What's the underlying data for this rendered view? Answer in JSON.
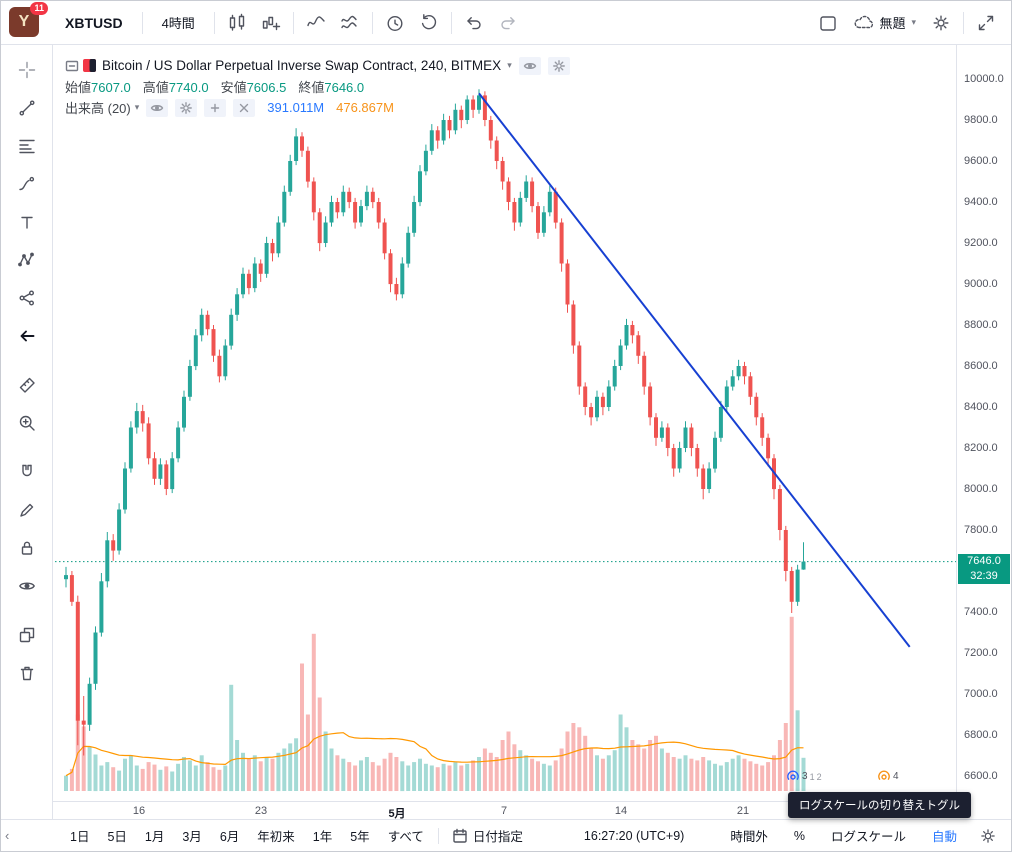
{
  "top_toolbar": {
    "logo_badge": "11",
    "symbol": "XBTUSD",
    "interval": "4時間",
    "save_name": "無題",
    "icons_left": [
      "chart-style",
      "compare",
      "indicators",
      "indicator-templates",
      "alert",
      "replay",
      "undo",
      "redo"
    ],
    "icons_right": [
      "layout",
      "cloud",
      "settings",
      "fullscreen"
    ]
  },
  "left_toolbar": {
    "tools": [
      "crosshair",
      "trend-line",
      "fib-retracement",
      "brush",
      "text",
      "xabcd-pattern",
      "prediction",
      "back-arrow",
      "ruler",
      "zoom-in",
      "magnet",
      "drawing-lock",
      "lock-all",
      "hide-all",
      "object-tree",
      "remove-drawings"
    ]
  },
  "legend": {
    "title": "Bitcoin / US Dollar Perpetual Inverse Swap Contract, 240, BITMEX",
    "ohlc": [
      {
        "label": "始値",
        "value": "7607.0"
      },
      {
        "label": "高値",
        "value": "7740.0"
      },
      {
        "label": "安値",
        "value": "7606.5"
      },
      {
        "label": "終値",
        "value": "7646.0"
      }
    ],
    "volume_label": "出来高 (20)",
    "volume_value": "391.011M",
    "volume_ma_value": "476.867M"
  },
  "price_scale": {
    "last_price_label": "7646.0",
    "countdown": "32:39"
  },
  "tooltip": {
    "text": "ログスケールの切り替えトグル"
  },
  "bottom_toolbar": {
    "ranges": [
      "1日",
      "5日",
      "1月",
      "3月",
      "6月",
      "年初来",
      "1年",
      "5年",
      "すべて"
    ],
    "goto_date": "日付指定",
    "clock": "16:27:20 (UTC+9)",
    "extended_hours": "時間外",
    "percent": "%",
    "log_scale": "ログスケール",
    "auto": "自動"
  },
  "markers": [
    {
      "index": 124,
      "color": "#2962ff",
      "labels": [
        "3",
        "1",
        "2"
      ]
    },
    {
      "index": 139.5,
      "color": "#f7931a",
      "labels": [
        "4"
      ]
    }
  ],
  "chart_data": {
    "type": "candlestick",
    "symbol": "XBTUSD",
    "exchange": "BITMEX",
    "interval": "240",
    "title": "Bitcoin / US Dollar Perpetual Inverse Swap Contract, 240, BITMEX",
    "last": {
      "open": 7607.0,
      "high": 7740.0,
      "low": 7606.5,
      "close": 7646.0,
      "countdown": "32:39"
    },
    "price_axis": {
      "ticks": [
        10000,
        9800,
        9600,
        9400,
        9200,
        9000,
        8800,
        8600,
        8400,
        8200,
        8000,
        7800,
        7400,
        7200,
        7000,
        6800,
        6600
      ],
      "visible_range": [
        6520,
        10090
      ]
    },
    "time_axis_labels": [
      {
        "text": "16",
        "i": 12.7
      },
      {
        "text": "23",
        "i": 33.4
      },
      {
        "text": "5月",
        "i": 56.4,
        "major": true
      },
      {
        "text": "7",
        "i": 74.6
      },
      {
        "text": "14",
        "i": 94.4
      },
      {
        "text": "21",
        "i": 115.1
      }
    ],
    "candles": [
      [
        7560,
        7620,
        7520,
        7580
      ],
      [
        7580,
        7600,
        7430,
        7450
      ],
      [
        7450,
        7480,
        6750,
        6870
      ],
      [
        6870,
        6990,
        6700,
        6850
      ],
      [
        6850,
        7080,
        6820,
        7050
      ],
      [
        7050,
        7330,
        7020,
        7300
      ],
      [
        7300,
        7590,
        7280,
        7550
      ],
      [
        7550,
        7790,
        7520,
        7750
      ],
      [
        7750,
        7780,
        7650,
        7700
      ],
      [
        7700,
        7930,
        7680,
        7900
      ],
      [
        7900,
        8130,
        7880,
        8100
      ],
      [
        8100,
        8330,
        8080,
        8300
      ],
      [
        8300,
        8420,
        8270,
        8380
      ],
      [
        8380,
        8410,
        8280,
        8320
      ],
      [
        8320,
        8350,
        8120,
        8150
      ],
      [
        8150,
        8180,
        8020,
        8050
      ],
      [
        8050,
        8150,
        8020,
        8120
      ],
      [
        8120,
        8140,
        7970,
        8000
      ],
      [
        8000,
        8180,
        7980,
        8150
      ],
      [
        8150,
        8330,
        8130,
        8300
      ],
      [
        8300,
        8480,
        8280,
        8450
      ],
      [
        8450,
        8630,
        8430,
        8600
      ],
      [
        8600,
        8780,
        8580,
        8750
      ],
      [
        8750,
        8880,
        8720,
        8850
      ],
      [
        8850,
        8870,
        8750,
        8780
      ],
      [
        8780,
        8800,
        8620,
        8650
      ],
      [
        8650,
        8680,
        8520,
        8550
      ],
      [
        8550,
        8730,
        8530,
        8700
      ],
      [
        8700,
        8880,
        8680,
        8850
      ],
      [
        8850,
        8980,
        8820,
        8950
      ],
      [
        8950,
        9080,
        8930,
        9050
      ],
      [
        9050,
        9070,
        8950,
        8980
      ],
      [
        8980,
        9130,
        8960,
        9100
      ],
      [
        9100,
        9120,
        9010,
        9050
      ],
      [
        9050,
        9230,
        9030,
        9200
      ],
      [
        9200,
        9220,
        9110,
        9150
      ],
      [
        9150,
        9330,
        9130,
        9300
      ],
      [
        9300,
        9480,
        9280,
        9450
      ],
      [
        9450,
        9630,
        9430,
        9600
      ],
      [
        9600,
        9760,
        9580,
        9720
      ],
      [
        9720,
        9740,
        9620,
        9650
      ],
      [
        9650,
        9670,
        9470,
        9500
      ],
      [
        9500,
        9520,
        9310,
        9350
      ],
      [
        9350,
        9370,
        9160,
        9200
      ],
      [
        9200,
        9330,
        9180,
        9300
      ],
      [
        9300,
        9430,
        9280,
        9400
      ],
      [
        9400,
        9420,
        9320,
        9350
      ],
      [
        9350,
        9480,
        9330,
        9450
      ],
      [
        9450,
        9470,
        9370,
        9400
      ],
      [
        9400,
        9420,
        9270,
        9300
      ],
      [
        9300,
        9410,
        9280,
        9380
      ],
      [
        9380,
        9480,
        9360,
        9450
      ],
      [
        9450,
        9470,
        9370,
        9400
      ],
      [
        9400,
        9420,
        9270,
        9300
      ],
      [
        9300,
        9320,
        9120,
        9150
      ],
      [
        9150,
        9170,
        8960,
        9000
      ],
      [
        9000,
        9030,
        8920,
        8950
      ],
      [
        8950,
        9130,
        8930,
        9100
      ],
      [
        9100,
        9280,
        9080,
        9250
      ],
      [
        9250,
        9430,
        9230,
        9400
      ],
      [
        9400,
        9580,
        9380,
        9550
      ],
      [
        9550,
        9680,
        9530,
        9650
      ],
      [
        9650,
        9780,
        9630,
        9750
      ],
      [
        9750,
        9770,
        9660,
        9700
      ],
      [
        9700,
        9830,
        9680,
        9800
      ],
      [
        9800,
        9820,
        9710,
        9750
      ],
      [
        9750,
        9880,
        9730,
        9850
      ],
      [
        9850,
        9870,
        9760,
        9800
      ],
      [
        9800,
        9920,
        9780,
        9900
      ],
      [
        9900,
        9920,
        9810,
        9850
      ],
      [
        9850,
        9950,
        9830,
        9920
      ],
      [
        9920,
        9940,
        9770,
        9800
      ],
      [
        9800,
        9820,
        9660,
        9700
      ],
      [
        9700,
        9720,
        9560,
        9600
      ],
      [
        9600,
        9620,
        9460,
        9500
      ],
      [
        9500,
        9520,
        9360,
        9400
      ],
      [
        9400,
        9420,
        9260,
        9300
      ],
      [
        9300,
        9450,
        9280,
        9420
      ],
      [
        9420,
        9530,
        9400,
        9500
      ],
      [
        9500,
        9520,
        9350,
        9380
      ],
      [
        9380,
        9400,
        9220,
        9250
      ],
      [
        9250,
        9380,
        9230,
        9350
      ],
      [
        9350,
        9480,
        9330,
        9450
      ],
      [
        9450,
        9470,
        9270,
        9300
      ],
      [
        9300,
        9320,
        9060,
        9100
      ],
      [
        9100,
        9120,
        8860,
        8900
      ],
      [
        8900,
        8920,
        8660,
        8700
      ],
      [
        8700,
        8720,
        8460,
        8500
      ],
      [
        8500,
        8520,
        8360,
        8400
      ],
      [
        8400,
        8420,
        8310,
        8350
      ],
      [
        8350,
        8480,
        8330,
        8450
      ],
      [
        8450,
        8470,
        8360,
        8400
      ],
      [
        8400,
        8530,
        8380,
        8500
      ],
      [
        8500,
        8630,
        8480,
        8600
      ],
      [
        8600,
        8730,
        8580,
        8700
      ],
      [
        8700,
        8830,
        8680,
        8800
      ],
      [
        8800,
        8820,
        8710,
        8750
      ],
      [
        8750,
        8770,
        8610,
        8650
      ],
      [
        8650,
        8670,
        8460,
        8500
      ],
      [
        8500,
        8520,
        8310,
        8350
      ],
      [
        8350,
        8370,
        8210,
        8250
      ],
      [
        8250,
        8330,
        8230,
        8300
      ],
      [
        8300,
        8320,
        8160,
        8200
      ],
      [
        8200,
        8220,
        8060,
        8100
      ],
      [
        8100,
        8230,
        8080,
        8200
      ],
      [
        8200,
        8330,
        8180,
        8300
      ],
      [
        8300,
        8320,
        8160,
        8200
      ],
      [
        8200,
        8220,
        8060,
        8100
      ],
      [
        8100,
        8120,
        7950,
        8000
      ],
      [
        8000,
        8130,
        7980,
        8100
      ],
      [
        8100,
        8280,
        8080,
        8250
      ],
      [
        8250,
        8430,
        8230,
        8400
      ],
      [
        8400,
        8530,
        8380,
        8500
      ],
      [
        8500,
        8580,
        8480,
        8550
      ],
      [
        8550,
        8630,
        8530,
        8600
      ],
      [
        8600,
        8620,
        8510,
        8550
      ],
      [
        8550,
        8570,
        8410,
        8450
      ],
      [
        8450,
        8470,
        8310,
        8350
      ],
      [
        8350,
        8370,
        8210,
        8250
      ],
      [
        8250,
        8270,
        8110,
        8150
      ],
      [
        8150,
        8170,
        7950,
        8000
      ],
      [
        8000,
        8020,
        7750,
        7800
      ],
      [
        7800,
        7820,
        7550,
        7600
      ],
      [
        7600,
        7620,
        7395,
        7450
      ],
      [
        7450,
        7630,
        7430,
        7607
      ],
      [
        7607,
        7740,
        7606,
        7646
      ]
    ],
    "volume": {
      "period": 20,
      "current": "391.011M",
      "ma": "476.867M",
      "values": [
        180,
        260,
        900,
        760,
        520,
        430,
        300,
        340,
        280,
        240,
        380,
        420,
        300,
        260,
        340,
        310,
        250,
        290,
        230,
        320,
        400,
        360,
        300,
        420,
        340,
        280,
        250,
        300,
        1250,
        600,
        450,
        380,
        420,
        350,
        400,
        380,
        450,
        500,
        560,
        620,
        1500,
        900,
        1850,
        1100,
        700,
        500,
        420,
        380,
        340,
        300,
        360,
        400,
        340,
        300,
        380,
        450,
        400,
        350,
        300,
        340,
        380,
        320,
        300,
        280,
        320,
        300,
        340,
        300,
        320,
        360,
        400,
        500,
        450,
        400,
        600,
        700,
        550,
        480,
        420,
        380,
        350,
        320,
        300,
        360,
        500,
        700,
        800,
        750,
        650,
        500,
        420,
        380,
        420,
        480,
        900,
        750,
        600,
        550,
        500,
        600,
        650,
        500,
        450,
        400,
        380,
        420,
        380,
        360,
        400,
        360,
        320,
        300,
        340,
        380,
        420,
        380,
        350,
        320,
        300,
        340,
        420,
        600,
        800,
        2050,
        950,
        391
      ]
    },
    "trendline": {
      "from": {
        "index": 70,
        "price": 9930
      },
      "to": {
        "index": 143,
        "price": 7230
      },
      "color": "#1740d2"
    },
    "last_price_line": 7646.0,
    "colors": {
      "up": "#26a69a",
      "down": "#ef5350",
      "volume_ma": "#ff9800",
      "last_price": "#089981"
    }
  }
}
